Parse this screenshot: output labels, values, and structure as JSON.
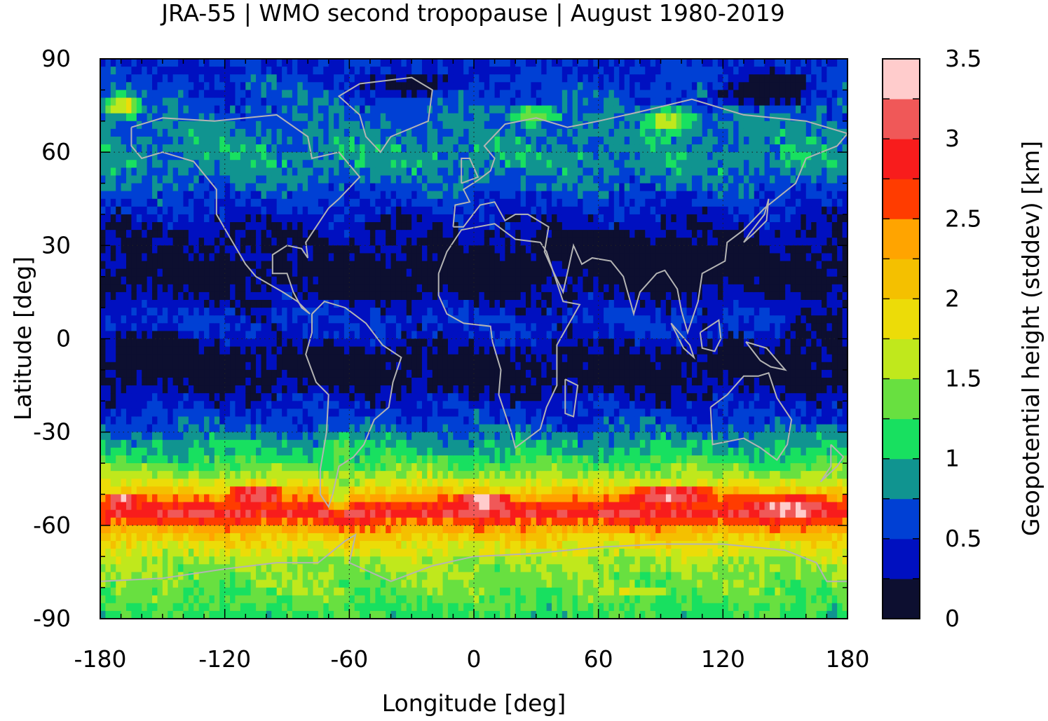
{
  "chart_data": {
    "type": "heatmap",
    "title": "JRA-55 | WMO second tropopause | August 1980-2019",
    "xlabel": "Longitude [deg]",
    "ylabel": "Latitude [deg]",
    "colorbar_label": "Geopotential height (stddev) [km]",
    "xlim": [
      -180,
      180
    ],
    "ylim": [
      -90,
      90
    ],
    "xticks": [
      "-180",
      "-120",
      "-60",
      "0",
      "60",
      "120",
      "180"
    ],
    "yticks": [
      "90",
      "60",
      "30",
      "0",
      "-30",
      "-60",
      "-90"
    ],
    "colorbar_ticks": [
      "0",
      "0.5",
      "1",
      "1.5",
      "2",
      "2.5",
      "3",
      "3.5"
    ],
    "colorbar_range": [
      0,
      3.5
    ],
    "colorbar_colors": [
      "#0d0f30",
      "#0010c0",
      "#0040d4",
      "#109490",
      "#18e060",
      "#68e040",
      "#c0e81c",
      "#ecdc08",
      "#f4c000",
      "#ffa400",
      "#ff3c00",
      "#f81c1c",
      "#f05858",
      "#ffcccc"
    ],
    "grid": true,
    "zonal_mean_stddev": [
      {
        "lat": 87,
        "value": 0.5
      },
      {
        "lat": 80,
        "value": 0.6
      },
      {
        "lat": 72,
        "value": 0.7
      },
      {
        "lat": 65,
        "value": 0.8
      },
      {
        "lat": 58,
        "value": 0.9
      },
      {
        "lat": 50,
        "value": 0.7
      },
      {
        "lat": 43,
        "value": 0.5
      },
      {
        "lat": 36,
        "value": 0.3
      },
      {
        "lat": 28,
        "value": 0.2
      },
      {
        "lat": 20,
        "value": 0.1
      },
      {
        "lat": 13,
        "value": 0.3
      },
      {
        "lat": 6,
        "value": 0.5
      },
      {
        "lat": 0,
        "value": 0.4
      },
      {
        "lat": -6,
        "value": 0.1
      },
      {
        "lat": -13,
        "value": 0.1
      },
      {
        "lat": -20,
        "value": 0.4
      },
      {
        "lat": -27,
        "value": 0.6
      },
      {
        "lat": -33,
        "value": 0.9
      },
      {
        "lat": -38,
        "value": 1.1
      },
      {
        "lat": -42,
        "value": 1.4
      },
      {
        "lat": -46,
        "value": 1.7
      },
      {
        "lat": -50,
        "value": 2.2
      },
      {
        "lat": -53,
        "value": 2.7
      },
      {
        "lat": -56,
        "value": 3.0
      },
      {
        "lat": -59,
        "value": 2.6
      },
      {
        "lat": -63,
        "value": 2.1
      },
      {
        "lat": -67,
        "value": 1.8
      },
      {
        "lat": -72,
        "value": 1.5
      },
      {
        "lat": -78,
        "value": 1.4
      },
      {
        "lat": -84,
        "value": 1.3
      },
      {
        "lat": -88,
        "value": 1.2
      }
    ],
    "blobs": [
      {
        "lon": 5,
        "lat": 20,
        "rlon": 30,
        "rlat": 10,
        "value": 0.0
      },
      {
        "lon": 60,
        "lat": 28,
        "rlon": 45,
        "rlat": 8,
        "value": 0.0
      },
      {
        "lon": 95,
        "lat": 24,
        "rlon": 40,
        "rlat": 10,
        "value": 0.0
      },
      {
        "lon": -45,
        "lat": 18,
        "rlon": 40,
        "rlat": 8,
        "value": 0.0
      },
      {
        "lon": -135,
        "lat": 20,
        "rlon": 40,
        "rlat": 7,
        "value": 0.1
      },
      {
        "lon": 140,
        "lat": 80,
        "rlon": 30,
        "rlat": 7,
        "value": 0.0
      },
      {
        "lon": -30,
        "lat": 82,
        "rlon": 30,
        "rlat": 5,
        "value": 0.0
      },
      {
        "lon": 95,
        "lat": 70,
        "rlon": 15,
        "rlat": 5,
        "value": 1.6
      },
      {
        "lon": -170,
        "lat": 75,
        "rlon": 12,
        "rlat": 5,
        "value": 1.8
      },
      {
        "lon": 30,
        "lat": 72,
        "rlon": 14,
        "rlat": 4,
        "value": 1.5
      },
      {
        "lon": -65,
        "lat": -40,
        "rlon": 7,
        "rlat": 12,
        "value": 1.4
      },
      {
        "lon": -65,
        "lat": -50,
        "rlon": 6,
        "rlat": 8,
        "value": 1.6
      },
      {
        "lon": -105,
        "lat": -50,
        "rlon": 15,
        "rlat": 4,
        "value": 3.3
      },
      {
        "lon": -170,
        "lat": -52,
        "rlon": 8,
        "rlat": 3,
        "value": 3.3
      },
      {
        "lon": 5,
        "lat": -52,
        "rlon": 15,
        "rlat": 3,
        "value": 3.3
      },
      {
        "lon": 95,
        "lat": -50,
        "rlon": 25,
        "rlat": 4,
        "value": 3.3
      },
      {
        "lon": 155,
        "lat": -54,
        "rlon": 20,
        "rlat": 4,
        "value": 3.3
      },
      {
        "lon": 80,
        "lat": -81,
        "rlon": 18,
        "rlat": 2,
        "value": 1.8
      },
      {
        "lon": 165,
        "lat": -1,
        "rlon": 20,
        "rlat": 12,
        "value": 0.05
      },
      {
        "lon": -150,
        "lat": -3,
        "rlon": 30,
        "rlat": 7,
        "value": 0.05
      }
    ]
  }
}
